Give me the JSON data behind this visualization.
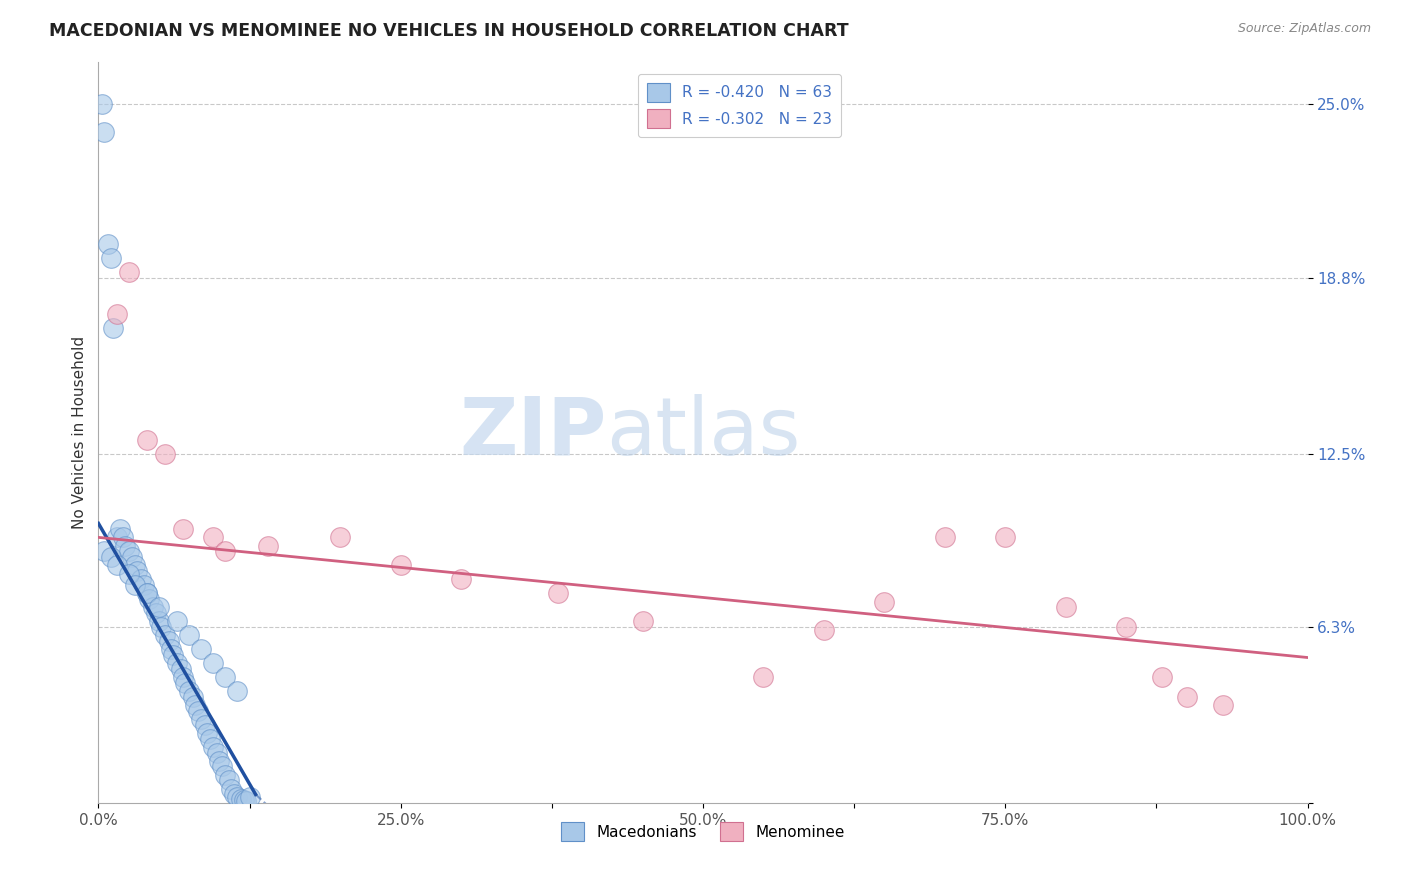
{
  "title": "MACEDONIAN VS MENOMINEE NO VEHICLES IN HOUSEHOLD CORRELATION CHART",
  "source": "Source: ZipAtlas.com",
  "ylabel": "No Vehicles in Household",
  "xlim": [
    0,
    100
  ],
  "ylim": [
    0,
    26.5
  ],
  "yticks": [
    0,
    6.3,
    12.5,
    18.8,
    25.0
  ],
  "ytick_labels": [
    "",
    "6.3%",
    "12.5%",
    "18.8%",
    "25.0%"
  ],
  "xtick_labels": [
    "0.0%",
    "",
    "25.0%",
    "",
    "50.0%",
    "",
    "75.0%",
    "",
    "100.0%"
  ],
  "xticks": [
    0,
    12.5,
    25,
    37.5,
    50,
    62.5,
    75,
    87.5,
    100
  ],
  "legend_entry_blue": "R = -0.420   N = 63",
  "legend_entry_pink": "R = -0.302   N = 23",
  "blue_color": "#a8c8e8",
  "blue_edge_color": "#6090c8",
  "pink_color": "#f0b0c0",
  "pink_edge_color": "#d07090",
  "blue_line_color": "#2050a0",
  "pink_line_color": "#d06080",
  "watermark_color": "#ccddf0",
  "blue_scatter_x": [
    0.3,
    0.5,
    0.8,
    1.0,
    1.2,
    1.5,
    1.8,
    2.0,
    2.2,
    2.5,
    2.8,
    3.0,
    3.2,
    3.5,
    3.8,
    4.0,
    4.2,
    4.5,
    4.8,
    5.0,
    5.2,
    5.5,
    5.8,
    6.0,
    6.2,
    6.5,
    6.8,
    7.0,
    7.2,
    7.5,
    7.8,
    8.0,
    8.2,
    8.5,
    8.8,
    9.0,
    9.2,
    9.5,
    9.8,
    10.0,
    10.2,
    10.5,
    10.8,
    11.0,
    11.2,
    11.5,
    11.8,
    12.0,
    12.2,
    12.5,
    0.5,
    1.0,
    1.5,
    2.5,
    3.0,
    4.0,
    5.0,
    6.5,
    7.5,
    8.5,
    9.5,
    10.5,
    11.5
  ],
  "blue_scatter_y": [
    25.0,
    24.0,
    20.0,
    19.5,
    17.0,
    9.5,
    9.8,
    9.5,
    9.2,
    9.0,
    8.8,
    8.5,
    8.3,
    8.0,
    7.8,
    7.5,
    7.3,
    7.0,
    6.8,
    6.5,
    6.3,
    6.0,
    5.8,
    5.5,
    5.3,
    5.0,
    4.8,
    4.5,
    4.3,
    4.0,
    3.8,
    3.5,
    3.3,
    3.0,
    2.8,
    2.5,
    2.3,
    2.0,
    1.8,
    1.5,
    1.3,
    1.0,
    0.8,
    0.5,
    0.3,
    0.2,
    0.15,
    0.1,
    0.05,
    0.2,
    9.0,
    8.8,
    8.5,
    8.2,
    7.8,
    7.5,
    7.0,
    6.5,
    6.0,
    5.5,
    5.0,
    4.5,
    4.0
  ],
  "pink_scatter_x": [
    1.5,
    2.5,
    4.0,
    5.5,
    7.0,
    9.5,
    10.5,
    14.0,
    20.0,
    25.0,
    30.0,
    38.0,
    45.0,
    55.0,
    60.0,
    65.0,
    70.0,
    75.0,
    80.0,
    85.0,
    88.0,
    90.0,
    93.0
  ],
  "pink_scatter_y": [
    17.5,
    19.0,
    13.0,
    12.5,
    9.8,
    9.5,
    9.0,
    9.2,
    9.5,
    8.5,
    8.0,
    7.5,
    6.5,
    4.5,
    6.2,
    7.2,
    9.5,
    9.5,
    7.0,
    6.3,
    4.5,
    3.8,
    3.5
  ],
  "blue_line_x": [
    0,
    13.0
  ],
  "blue_line_y": [
    10.0,
    0.3
  ],
  "pink_line_x": [
    0,
    100
  ],
  "pink_line_y": [
    9.5,
    5.2
  ]
}
